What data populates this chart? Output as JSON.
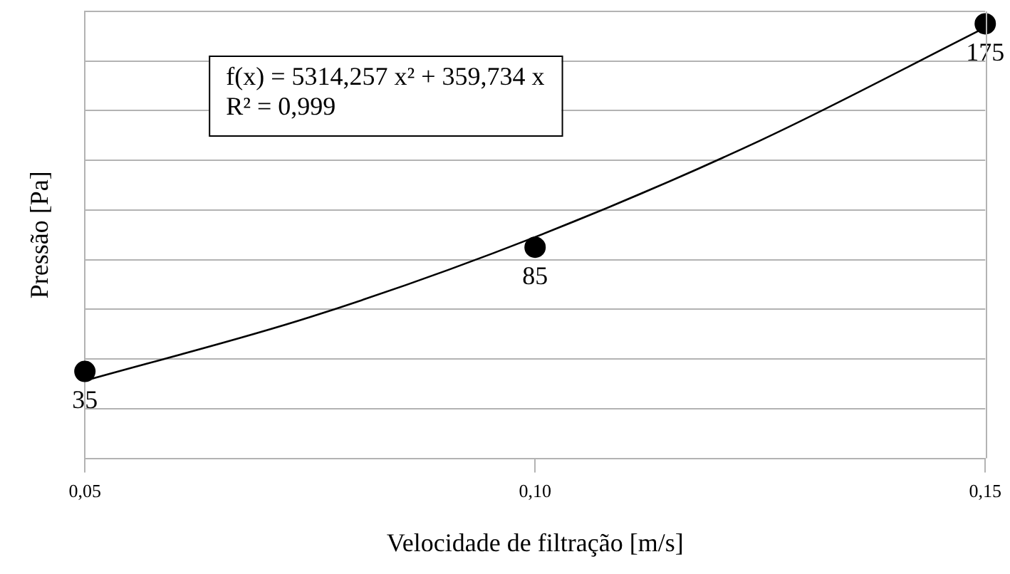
{
  "chart_data": {
    "type": "scatter",
    "xlabel": "Velocidade de filtração [m/s]",
    "ylabel": "Pressão [Pa]",
    "xlim": [
      0.05,
      0.15
    ],
    "xticks": [
      {
        "value": 0.05,
        "label": "0,05"
      },
      {
        "value": 0.1,
        "label": "0,10"
      },
      {
        "value": 0.15,
        "label": "0,15"
      }
    ],
    "ylim": [
      0,
      180
    ],
    "yticks": [
      {
        "value": 0,
        "label": null
      },
      {
        "value": 20,
        "label": null
      },
      {
        "value": 40,
        "label": null
      },
      {
        "value": 60,
        "label": null
      },
      {
        "value": 80,
        "label": null
      },
      {
        "value": 100,
        "label": null
      },
      {
        "value": 120,
        "label": null
      },
      {
        "value": 140,
        "label": null
      },
      {
        "value": 160,
        "label": null
      },
      {
        "value": 180,
        "label": null
      }
    ],
    "tick_labels": "x",
    "grid": "y",
    "legend": false,
    "marker": "circle",
    "series": [
      {
        "type": "scatter",
        "color": "#000000",
        "x": [
          0.05,
          0.1,
          0.15
        ],
        "values": [
          35,
          85,
          175
        ],
        "value_labels": [
          "35",
          "85",
          "175"
        ]
      },
      {
        "type": "line",
        "color": "#000000",
        "marker": "none",
        "x": [
          0.05,
          0.075,
          0.1,
          0.125,
          0.15
        ],
        "values": [
          31.27,
          56.87,
          89.12,
          128.0,
          173.53
        ]
      }
    ],
    "annotations": [
      "f(x) = 5314,257 x² + 359,734 x",
      "R² = 0,999"
    ]
  }
}
